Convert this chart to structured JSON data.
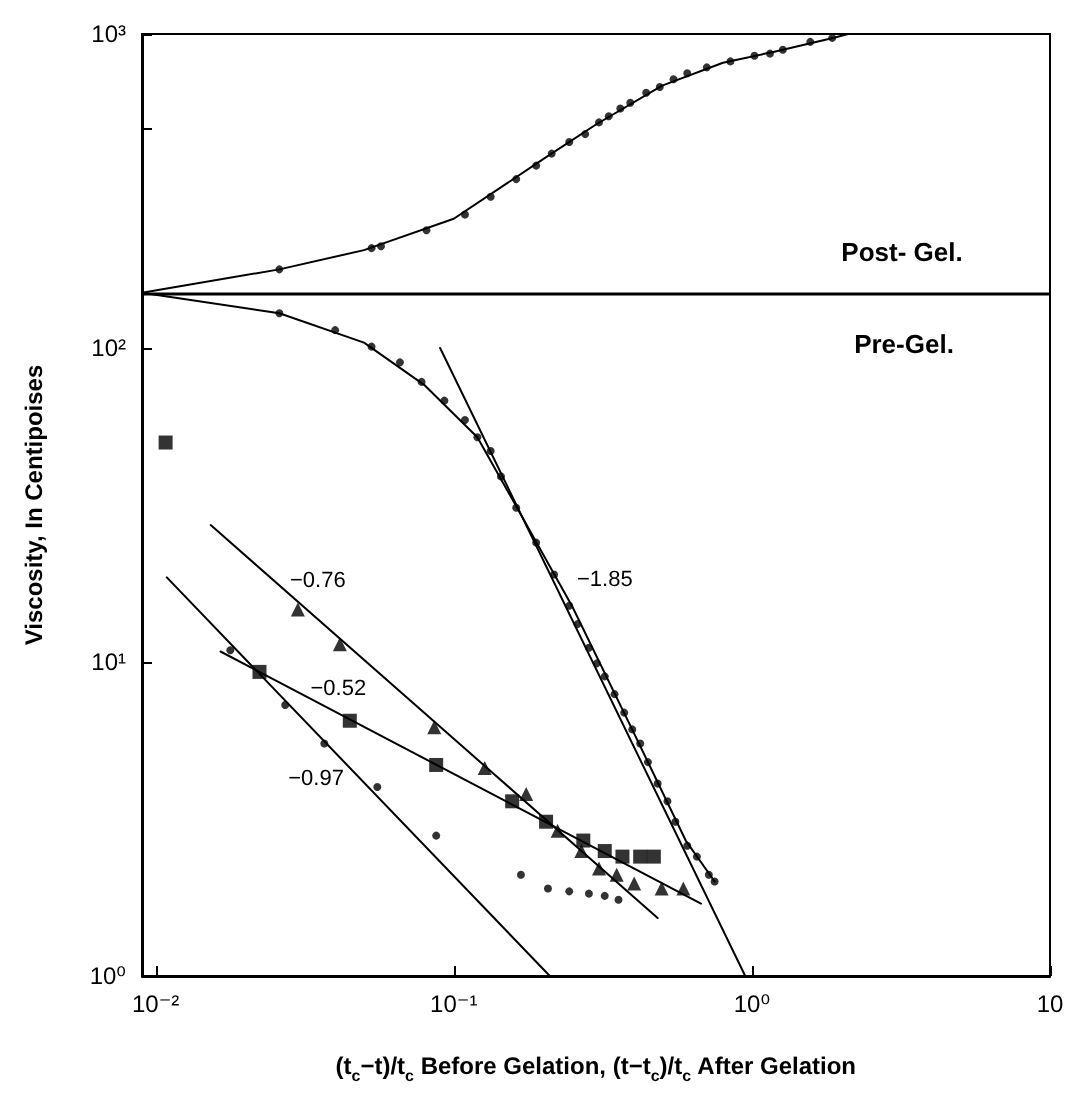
{
  "chart_data": {
    "type": "scatter",
    "xlim": [
      0.009,
      10
    ],
    "ylim": [
      1,
      1000
    ],
    "log": "xy",
    "xticks": [
      {
        "value": 0.01,
        "label": "10⁻²"
      },
      {
        "value": 0.1,
        "label": "10⁻¹"
      },
      {
        "value": 1,
        "label": "10⁰"
      },
      10
    ],
    "yticks": [
      {
        "value": 1,
        "label": "10⁰"
      },
      {
        "value": 10,
        "label": "10¹"
      },
      {
        "value": 100,
        "label": "10²"
      },
      {
        "value": 500,
        "label": null
      },
      {
        "value": 1000,
        "label": "10³"
      }
    ],
    "xlabel": "(t$_{c}$−t)/t$_{c}$ Before Gelation, (t−t$_{c}$)/t$_{c}$ After Gelation",
    "ylabel": "Viscosity, In Centipoises",
    "ref_lines": [
      {
        "axis": "y",
        "value": 150,
        "color": "#000000"
      }
    ],
    "annotations": [
      "Post- Gel.",
      "Pre-Gel.",
      {
        "text": "−0.76",
        "x": 0.035,
        "y": 13.7
      },
      {
        "text": "−0.52",
        "x": 0.041,
        "y": 6.8
      },
      {
        "text": "−0.97",
        "x": 0.0485,
        "y": 4.25
      },
      {
        "text": "−1.85",
        "x": 0.215,
        "y": 18.3
      }
    ],
    "series": [
      {
        "type": "scatter",
        "marker": "circle",
        "color": "#000000",
        "x": [
          0.026,
          0.053,
          0.057,
          0.081,
          0.109,
          0.133,
          0.162,
          0.189,
          0.213,
          0.244,
          0.276,
          0.307,
          0.331,
          0.362,
          0.391,
          0.442,
          0.491,
          0.546,
          0.607,
          0.706,
          0.847,
          1.02,
          1.15,
          1.27,
          1.57,
          1.86
        ],
        "values": [
          178,
          208,
          211,
          237,
          266,
          303,
          345,
          381,
          416,
          453,
          480,
          523,
          547,
          579,
          604,
          650,
          678,
          718,
          750,
          783,
          818,
          853,
          866,
          891,
          944,
          972
        ]
      },
      {
        "type": "line",
        "marker": "none",
        "color": "#000000",
        "x": [
          0.009,
          0.026,
          0.05,
          0.1,
          0.2,
          0.3,
          0.5,
          0.8,
          1.2,
          1.9,
          2.1
        ],
        "values": [
          150,
          178,
          205,
          258,
          400,
          515,
          685,
          810,
          880,
          975,
          1000
        ]
      },
      {
        "type": "scatter",
        "marker": "circle",
        "color": "#000000",
        "x": [
          0.026,
          0.04,
          0.053,
          0.066,
          0.078,
          0.093,
          0.109,
          0.12,
          0.133,
          0.144,
          0.162,
          0.189,
          0.217,
          0.244,
          0.26,
          0.284,
          0.302,
          0.321,
          0.346,
          0.373,
          0.397,
          0.422,
          0.448,
          0.483,
          0.521,
          0.554,
          0.607,
          0.654,
          0.717,
          0.75
        ],
        "values": [
          129,
          114,
          101,
          90,
          78,
          68,
          59,
          52,
          47,
          39,
          31,
          24,
          19,
          15.1,
          13.2,
          11.1,
          9.9,
          9.0,
          7.9,
          6.9,
          6.1,
          5.5,
          4.8,
          4.1,
          3.6,
          3.1,
          2.6,
          2.4,
          2.1,
          2.0
        ]
      },
      {
        "type": "line",
        "marker": "none",
        "color": "#000000",
        "x": [
          0.009,
          0.026,
          0.05,
          0.08,
          0.12,
          0.16,
          0.25,
          0.4,
          0.6,
          0.75
        ],
        "values": [
          150,
          129,
          104,
          76,
          52,
          32,
          15,
          6,
          2.7,
          2.0
        ]
      },
      {
        "type": "line",
        "marker": "none",
        "color": "#000000",
        "x": [
          0.09,
          0.95
        ],
        "values": [
          100,
          1
        ]
      },
      {
        "type": "scatter",
        "marker": "triangle",
        "color": "#000000",
        "x": [
          0.03,
          0.0415,
          0.086,
          0.127,
          0.175,
          0.223,
          0.268,
          0.307,
          0.352,
          0.403,
          0.498,
          0.589
        ],
        "values": [
          14.7,
          11.4,
          6.2,
          4.6,
          3.8,
          2.9,
          2.5,
          2.2,
          2.1,
          1.97,
          1.9,
          1.9
        ]
      },
      {
        "type": "line",
        "marker": "none",
        "color": "#000000",
        "x": [
          0.0153,
          0.483
        ],
        "values": [
          27.3,
          1.53
        ]
      },
      {
        "type": "scatter",
        "marker": "square",
        "color": "#000000",
        "x": [
          0.0108,
          0.0223,
          0.0448,
          0.0873,
          0.157,
          0.204,
          0.272,
          0.321,
          0.368,
          0.422,
          0.469
        ],
        "values": [
          50,
          9.3,
          6.5,
          4.7,
          3.6,
          3.1,
          2.7,
          2.5,
          2.4,
          2.4,
          2.4
        ]
      },
      {
        "type": "line",
        "marker": "none",
        "color": "#000000",
        "x": [
          0.0165,
          0.675
        ],
        "values": [
          10.8,
          1.7
        ]
      },
      {
        "type": "scatter",
        "marker": "circle",
        "color": "#000000",
        "x": [
          0.0178,
          0.0272,
          0.0368,
          0.0554,
          0.0873,
          0.168,
          0.207,
          0.244,
          0.284,
          0.321,
          0.357
        ],
        "values": [
          10.9,
          7.3,
          5.5,
          4.0,
          2.8,
          2.1,
          1.9,
          1.86,
          1.83,
          1.8,
          1.75
        ]
      },
      {
        "type": "line",
        "marker": "none",
        "color": "#000000",
        "x": [
          0.0109,
          0.21
        ],
        "values": [
          18.6,
          1
        ]
      }
    ]
  }
}
